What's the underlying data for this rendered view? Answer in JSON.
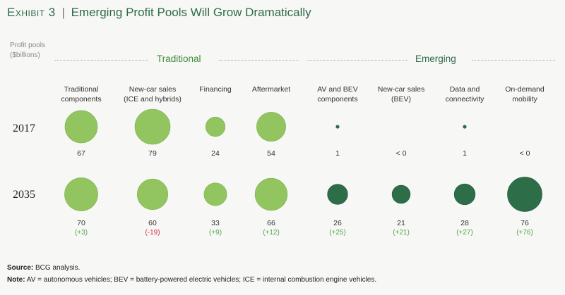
{
  "title": {
    "exhibit": "Exhibit 3",
    "separator": "|",
    "text": "Emerging Profit Pools Will Grow Dramatically"
  },
  "units_label_line1": "Profit pools",
  "units_label_line2": "($billions)",
  "groups": {
    "traditional": "Traditional",
    "emerging": "Emerging"
  },
  "colors": {
    "traditional": "#92c460",
    "emerging": "#2d6e49",
    "positive_delta": "#4ea94b",
    "negative_delta": "#d0314b"
  },
  "chart_data": {
    "type": "bubble-grid",
    "rows": [
      "2017",
      "2035"
    ],
    "categories": [
      {
        "label_line1": "Traditional",
        "label_line2": "components",
        "group": "traditional",
        "v2017": 67,
        "v2017_label": "67",
        "v2035": 70,
        "v2035_label": "70",
        "delta": "(+3)",
        "delta_sign": "pos"
      },
      {
        "label_line1": "New-car sales",
        "label_line2": "(ICE and hybrids)",
        "group": "traditional",
        "v2017": 79,
        "v2017_label": "79",
        "v2035": 60,
        "v2035_label": "60",
        "delta": "(-19)",
        "delta_sign": "neg"
      },
      {
        "label_line1": "Financing",
        "label_line2": "",
        "group": "traditional",
        "v2017": 24,
        "v2017_label": "24",
        "v2035": 33,
        "v2035_label": "33",
        "delta": "(+9)",
        "delta_sign": "pos"
      },
      {
        "label_line1": "Aftermarket",
        "label_line2": "",
        "group": "traditional",
        "v2017": 54,
        "v2017_label": "54",
        "v2035": 66,
        "v2035_label": "66",
        "delta": "(+12)",
        "delta_sign": "pos"
      },
      {
        "label_line1": "AV and BEV",
        "label_line2": "components",
        "group": "emerging",
        "v2017": 1,
        "v2017_label": "1",
        "v2035": 26,
        "v2035_label": "26",
        "delta": "(+25)",
        "delta_sign": "pos"
      },
      {
        "label_line1": "New-car sales",
        "label_line2": "(BEV)",
        "group": "emerging",
        "v2017": 0,
        "v2017_label": "< 0",
        "v2035": 21,
        "v2035_label": "21",
        "delta": "(+21)",
        "delta_sign": "pos"
      },
      {
        "label_line1": "Data and",
        "label_line2": "connectivity",
        "group": "emerging",
        "v2017": 1,
        "v2017_label": "1",
        "v2035": 28,
        "v2035_label": "28",
        "delta": "(+27)",
        "delta_sign": "pos"
      },
      {
        "label_line1": "On-demand",
        "label_line2": "mobility",
        "group": "emerging",
        "v2017": 0,
        "v2017_label": "< 0",
        "v2035": 76,
        "v2035_label": "76",
        "delta": "(+76)",
        "delta_sign": "pos"
      }
    ]
  },
  "footer": {
    "source_label": "Source:",
    "source_text": " BCG analysis.",
    "note_label": "Note:",
    "note_text": " AV = autonomous vehicles; BEV = battery-powered electric vehicles; ICE = internal combustion engine vehicles."
  }
}
